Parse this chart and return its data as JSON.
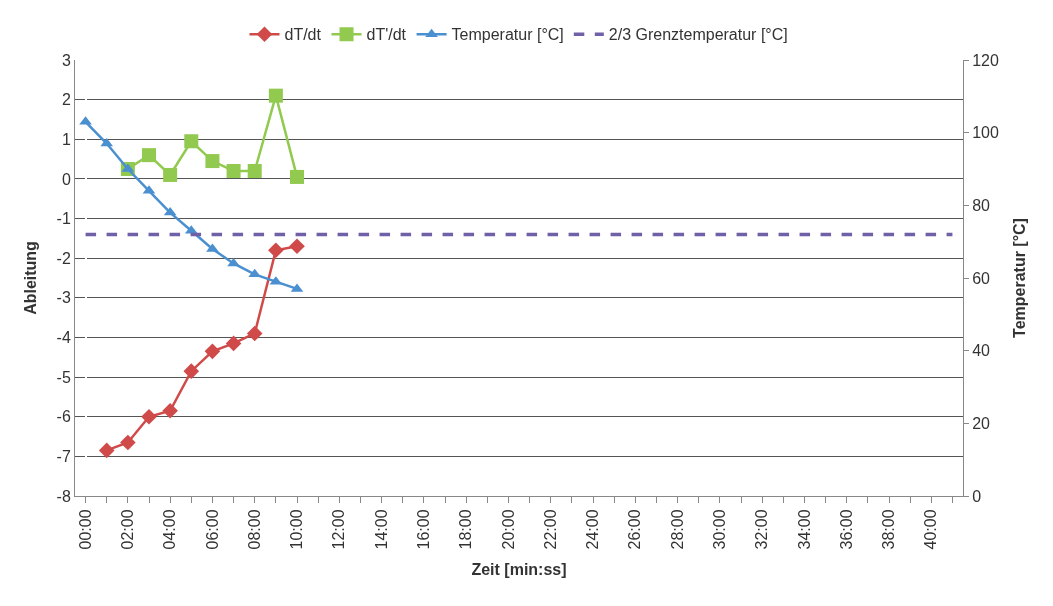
{
  "chart_data": {
    "type": "line",
    "xlabel": "Zeit [min:ss]",
    "ylabel": "Ableitung",
    "y2label": "Temperatur [°C]",
    "categories": [
      "00:00",
      null,
      "02:00",
      null,
      "04:00",
      null,
      "06:00",
      null,
      "08:00",
      null,
      "10:00",
      null,
      "12:00",
      null,
      "14:00",
      null,
      "16:00",
      null,
      "18:00",
      null,
      "20:00",
      null,
      "22:00",
      null,
      "24:00",
      null,
      "26:00",
      null,
      "28:00",
      null,
      "30:00",
      null,
      "32:00",
      null,
      "34:00",
      null,
      "36:00",
      null,
      "38:00",
      null,
      "40:00",
      null
    ],
    "series": [
      {
        "name": "dT/dt",
        "color": "#d04a4a",
        "marker": "diamond",
        "values": [
          null,
          -6.85,
          -6.65,
          -6.0,
          -5.85,
          -4.85,
          -4.35,
          -4.15,
          -3.9,
          -1.8,
          -1.7,
          null,
          null,
          null,
          null,
          null,
          null,
          null,
          null,
          null,
          null,
          null,
          null,
          null,
          null,
          null,
          null,
          null,
          null,
          null,
          null,
          null,
          null,
          null,
          null,
          null,
          null,
          null,
          null,
          null,
          null,
          null
        ]
      },
      {
        "name": "dT'/dt",
        "color": "#92c94f",
        "marker": "square",
        "values": [
          null,
          null,
          0.25,
          0.6,
          0.1,
          0.95,
          0.45,
          0.2,
          0.2,
          2.1,
          0.05,
          null,
          null,
          null,
          null,
          null,
          null,
          null,
          null,
          null,
          null,
          null,
          null,
          null,
          null,
          null,
          null,
          null,
          null,
          null,
          null,
          null,
          null,
          null,
          null,
          null,
          null,
          null,
          null,
          null,
          null,
          null
        ]
      },
      {
        "name": "Temperatur [°C]",
        "color": "#4a8fd0",
        "marker": "triangle",
        "axis": "y2",
        "values": [
          103,
          97,
          90,
          84,
          78,
          73,
          68,
          64,
          61,
          59,
          57,
          null,
          null,
          null,
          null,
          null,
          null,
          null,
          null,
          null,
          null,
          null,
          null,
          null,
          null,
          null,
          null,
          null,
          null,
          null,
          null,
          null,
          null,
          null,
          null,
          null,
          null,
          null,
          null,
          null,
          null,
          null
        ]
      },
      {
        "name": "2/3 Grenztemperatur [°C]",
        "color": "#7060a8",
        "marker": "none",
        "line_style": "dashed",
        "axis": "y2",
        "values": [
          72,
          72,
          72,
          72,
          72,
          72,
          72,
          72,
          72,
          72,
          72,
          72,
          72,
          72,
          72,
          72,
          72,
          72,
          72,
          72,
          72,
          72,
          72,
          72,
          72,
          72,
          72,
          72,
          72,
          72,
          72,
          72,
          72,
          72,
          72,
          72,
          72,
          72,
          72,
          72,
          72,
          72
        ]
      }
    ],
    "ylim": [
      -8,
      3
    ],
    "yticks": [
      -8,
      -7,
      -6,
      -5,
      -4,
      -3,
      -2,
      -1,
      0,
      1,
      2,
      3
    ],
    "y2lim": [
      0,
      120
    ],
    "y2ticks": [
      0,
      20,
      40,
      60,
      80,
      100,
      120
    ],
    "grid": "y",
    "legend": "top"
  }
}
